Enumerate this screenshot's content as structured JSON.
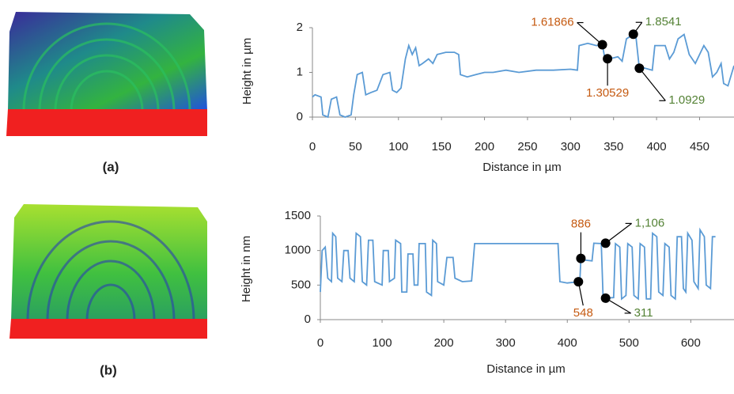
{
  "chart_data": [
    {
      "type": "line",
      "panel_label": "(a)",
      "x_label": "Distance in µm",
      "y_label": "Height in µm",
      "xlim": [
        0,
        490
      ],
      "ylim": [
        0,
        2
      ],
      "xticks": [
        0,
        50,
        100,
        150,
        200,
        250,
        300,
        350,
        400,
        450
      ],
      "yticks": [
        0,
        1,
        2
      ],
      "series": [
        {
          "color": "#5b9bd5",
          "x": [
            0,
            3,
            10,
            12,
            18,
            22,
            28,
            32,
            38,
            45,
            48,
            52,
            58,
            62,
            68,
            75,
            82,
            90,
            93,
            98,
            103,
            108,
            112,
            116,
            120,
            124,
            128,
            135,
            140,
            145,
            155,
            165,
            170,
            172,
            180,
            190,
            200,
            210,
            225,
            240,
            260,
            280,
            300,
            308,
            310,
            320,
            330,
            337,
            340,
            345,
            355,
            360,
            365,
            373,
            376,
            380,
            385,
            395,
            398,
            410,
            415,
            420,
            425,
            432,
            438,
            445,
            450,
            455,
            460,
            465,
            470,
            475,
            478,
            483,
            490
          ],
          "values": [
            0.45,
            0.5,
            0.45,
            0.05,
            0.0,
            0.4,
            0.45,
            0.05,
            0.0,
            0.05,
            0.5,
            0.95,
            1.0,
            0.5,
            0.55,
            0.6,
            0.95,
            1.0,
            0.6,
            0.55,
            0.65,
            1.3,
            1.6,
            1.4,
            1.55,
            1.15,
            1.2,
            1.3,
            1.2,
            1.4,
            1.45,
            1.45,
            1.4,
            0.95,
            0.9,
            0.95,
            1.0,
            1.0,
            1.05,
            1.0,
            1.05,
            1.05,
            1.07,
            1.05,
            1.6,
            1.65,
            1.6,
            1.62,
            1.3,
            1.3,
            1.35,
            1.25,
            1.75,
            1.85,
            1.8,
            1.09,
            1.1,
            1.05,
            1.6,
            1.6,
            1.3,
            1.45,
            1.75,
            1.85,
            1.4,
            1.2,
            1.4,
            1.6,
            1.45,
            0.9,
            1.0,
            1.2,
            0.75,
            0.7,
            1.15
          ]
        }
      ],
      "annotations": [
        {
          "x": 337,
          "y": 1.61866,
          "label": "1.61866",
          "color": "#c55a11"
        },
        {
          "x": 343,
          "y": 1.30529,
          "label": "1.30529",
          "color": "#c55a11"
        },
        {
          "x": 373,
          "y": 1.8541,
          "label": "1.8541",
          "color": "#548235"
        },
        {
          "x": 380,
          "y": 1.0929,
          "label": "1.0929",
          "color": "#548235"
        }
      ]
    },
    {
      "type": "line",
      "panel_label": "(b)",
      "x_label": "Distance in µm",
      "y_label": "Height in nm",
      "xlim": [
        0,
        670
      ],
      "ylim": [
        0,
        1500
      ],
      "xticks": [
        0,
        100,
        200,
        300,
        400,
        500,
        600
      ],
      "yticks": [
        0,
        500,
        1000,
        1500
      ],
      "series": [
        {
          "color": "#5b9bd5",
          "x": [
            0,
            3,
            8,
            12,
            18,
            20,
            25,
            28,
            35,
            38,
            45,
            48,
            55,
            58,
            65,
            68,
            75,
            78,
            85,
            88,
            100,
            102,
            110,
            112,
            120,
            122,
            130,
            132,
            140,
            142,
            150,
            152,
            158,
            160,
            170,
            172,
            180,
            182,
            188,
            190,
            200,
            205,
            215,
            218,
            230,
            245,
            250,
            300,
            350,
            385,
            388,
            400,
            418,
            420,
            422,
            430,
            440,
            443,
            455,
            458,
            462,
            475,
            478,
            485,
            488,
            495,
            498,
            505,
            508,
            515,
            518,
            525,
            528,
            535,
            538,
            545,
            548,
            555,
            558,
            565,
            568,
            575,
            578,
            585,
            588,
            592,
            595,
            602,
            605,
            612,
            615,
            622,
            625,
            632,
            635,
            640
          ],
          "values": [
            400,
            1000,
            1050,
            600,
            550,
            1250,
            1200,
            600,
            550,
            1000,
            1000,
            600,
            550,
            1250,
            1200,
            550,
            500,
            1150,
            1150,
            550,
            500,
            1000,
            1000,
            550,
            600,
            1150,
            1100,
            400,
            400,
            950,
            950,
            500,
            500,
            1100,
            1100,
            400,
            350,
            1150,
            1100,
            550,
            500,
            900,
            900,
            600,
            550,
            560,
            1100,
            1100,
            1100,
            1100,
            550,
            530,
            548,
            500,
            886,
            860,
            850,
            1106,
            1100,
            320,
            311,
            320,
            1100,
            1050,
            300,
            350,
            1100,
            1050,
            350,
            300,
            1100,
            1050,
            300,
            300,
            1250,
            1200,
            400,
            350,
            1100,
            1050,
            350,
            300,
            1200,
            1200,
            450,
            400,
            1250,
            1150,
            550,
            450,
            1300,
            1200,
            500,
            450,
            1200,
            1200
          ]
        }
      ],
      "annotations": [
        {
          "x": 422,
          "y": 886,
          "label": "886",
          "color": "#c55a11"
        },
        {
          "x": 418,
          "y": 548,
          "label": "548",
          "color": "#c55a11"
        },
        {
          "x": 462,
          "y": 1106,
          "label": "1,106",
          "color": "#548235"
        },
        {
          "x": 462,
          "y": 311,
          "label": "311",
          "color": "#548235"
        }
      ]
    }
  ]
}
